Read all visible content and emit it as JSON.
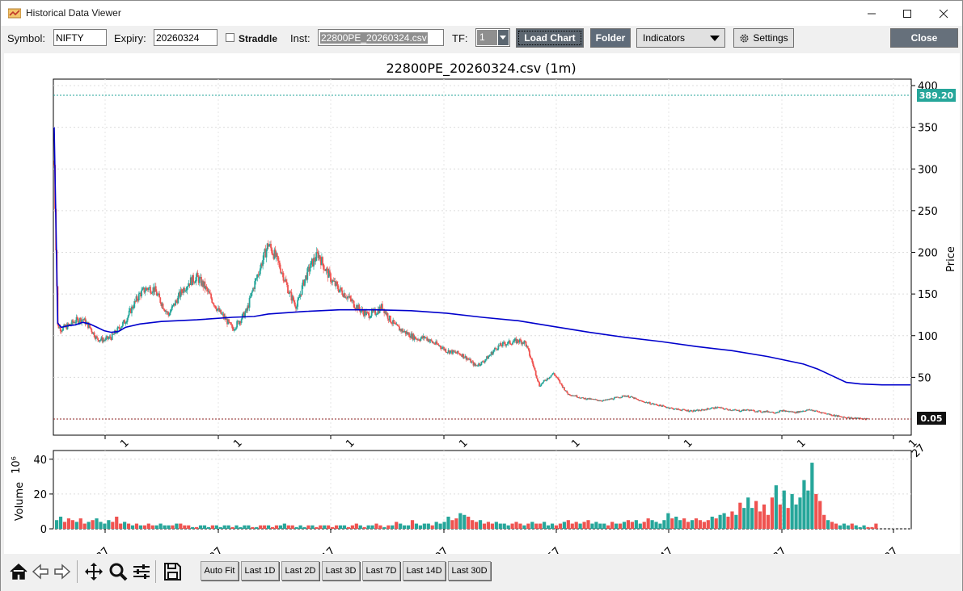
{
  "window": {
    "title": "Historical Data Viewer"
  },
  "toolbar": {
    "symbol_label": "Symbol:",
    "symbol_value": "NIFTY",
    "expiry_label": "Expiry:",
    "expiry_value": "20260324",
    "straddle_label": "Straddle",
    "inst_label": "Inst:",
    "inst_value": "22800PE_20260324.csv",
    "tf_label": "TF:",
    "tf_value": "1",
    "load_chart_label": "Load Chart",
    "folder_label": "Folder",
    "indicators_label": "Indicators",
    "settings_label": "Settings",
    "close_label": "Close"
  },
  "chart_data": {
    "type": "candlestick",
    "title": "22800PE_20260324.csv (1m)",
    "ylabel": "Price",
    "ylim": [
      0,
      400
    ],
    "yticks": [
      "400",
      "350",
      "300",
      "250",
      "200",
      "150",
      "100",
      "50"
    ],
    "xtick_labels": [
      "1",
      "1",
      "1",
      "1",
      "1",
      "1",
      "1",
      "1",
      "27"
    ],
    "grid": true,
    "last_price_marker": "389.20",
    "low_marker": "0.05",
    "price_series_approx": [
      [
        0,
        305
      ],
      [
        1,
        112
      ],
      [
        2,
        108
      ],
      [
        4,
        112
      ],
      [
        6,
        118
      ],
      [
        8,
        120
      ],
      [
        10,
        110
      ],
      [
        12,
        96
      ],
      [
        14,
        95
      ],
      [
        16,
        98
      ],
      [
        18,
        108
      ],
      [
        20,
        118
      ],
      [
        22,
        135
      ],
      [
        24,
        150
      ],
      [
        26,
        157
      ],
      [
        28,
        156
      ],
      [
        30,
        140
      ],
      [
        32,
        125
      ],
      [
        34,
        140
      ],
      [
        36,
        155
      ],
      [
        38,
        165
      ],
      [
        40,
        170
      ],
      [
        42,
        160
      ],
      [
        44,
        145
      ],
      [
        46,
        130
      ],
      [
        48,
        120
      ],
      [
        50,
        108
      ],
      [
        52,
        118
      ],
      [
        54,
        130
      ],
      [
        56,
        160
      ],
      [
        58,
        185
      ],
      [
        60,
        210
      ],
      [
        62,
        195
      ],
      [
        64,
        175
      ],
      [
        66,
        150
      ],
      [
        68,
        135
      ],
      [
        70,
        165
      ],
      [
        72,
        185
      ],
      [
        74,
        198
      ],
      [
        76,
        180
      ],
      [
        78,
        165
      ],
      [
        80,
        155
      ],
      [
        82,
        148
      ],
      [
        84,
        138
      ],
      [
        86,
        130
      ],
      [
        88,
        125
      ],
      [
        90,
        128
      ],
      [
        92,
        135
      ],
      [
        94,
        120
      ],
      [
        96,
        110
      ],
      [
        98,
        105
      ],
      [
        100,
        100
      ],
      [
        102,
        96
      ],
      [
        104,
        98
      ],
      [
        106,
        92
      ],
      [
        108,
        88
      ],
      [
        110,
        82
      ],
      [
        112,
        80
      ],
      [
        114,
        78
      ],
      [
        116,
        72
      ],
      [
        118,
        64
      ],
      [
        120,
        68
      ],
      [
        122,
        76
      ],
      [
        124,
        86
      ],
      [
        126,
        90
      ],
      [
        128,
        92
      ],
      [
        130,
        94
      ],
      [
        132,
        92
      ],
      [
        134,
        68
      ],
      [
        136,
        40
      ],
      [
        138,
        48
      ],
      [
        140,
        55
      ],
      [
        142,
        42
      ],
      [
        144,
        30
      ],
      [
        146,
        28
      ],
      [
        148,
        25
      ],
      [
        150,
        24
      ],
      [
        152,
        23
      ],
      [
        154,
        22
      ],
      [
        156,
        24
      ],
      [
        158,
        26
      ],
      [
        160,
        28
      ],
      [
        162,
        26
      ],
      [
        164,
        22
      ],
      [
        166,
        20
      ],
      [
        168,
        18
      ],
      [
        170,
        16
      ],
      [
        172,
        14
      ],
      [
        174,
        12
      ],
      [
        176,
        11
      ],
      [
        178,
        10
      ],
      [
        180,
        10
      ],
      [
        182,
        11
      ],
      [
        184,
        13
      ],
      [
        186,
        14
      ],
      [
        188,
        12
      ],
      [
        190,
        11
      ],
      [
        192,
        10
      ],
      [
        194,
        11
      ],
      [
        196,
        10
      ],
      [
        198,
        9
      ],
      [
        200,
        9
      ],
      [
        202,
        8
      ],
      [
        204,
        10
      ],
      [
        206,
        9
      ],
      [
        208,
        8
      ],
      [
        210,
        10
      ],
      [
        212,
        11
      ],
      [
        214,
        9
      ],
      [
        216,
        7
      ],
      [
        218,
        5
      ],
      [
        220,
        3
      ],
      [
        222,
        2
      ],
      [
        224,
        1
      ],
      [
        226,
        0.5
      ],
      [
        228,
        0.2
      ]
    ],
    "vwap_series_approx": [
      [
        0,
        350
      ],
      [
        1,
        115
      ],
      [
        2,
        110
      ],
      [
        4,
        112
      ],
      [
        6,
        113
      ],
      [
        8,
        116
      ],
      [
        10,
        114
      ],
      [
        12,
        110
      ],
      [
        14,
        106
      ],
      [
        16,
        104
      ],
      [
        18,
        105
      ],
      [
        20,
        110
      ],
      [
        24,
        114
      ],
      [
        30,
        117
      ],
      [
        40,
        119
      ],
      [
        50,
        122
      ],
      [
        56,
        123
      ],
      [
        60,
        126
      ],
      [
        70,
        129
      ],
      [
        80,
        131
      ],
      [
        90,
        131
      ],
      [
        100,
        130
      ],
      [
        110,
        127
      ],
      [
        120,
        122
      ],
      [
        130,
        118
      ],
      [
        140,
        111
      ],
      [
        150,
        104
      ],
      [
        160,
        98
      ],
      [
        170,
        93
      ],
      [
        180,
        87
      ],
      [
        190,
        82
      ],
      [
        200,
        75
      ],
      [
        210,
        66
      ],
      [
        214,
        60
      ],
      [
        218,
        52
      ],
      [
        222,
        44
      ],
      [
        226,
        42
      ],
      [
        232,
        41
      ],
      [
        240,
        41
      ]
    ],
    "volume": {
      "ylabel": "Volume",
      "scale_label": "10⁶",
      "ylim": [
        0,
        45
      ],
      "yticks": [
        "40",
        "20",
        "0"
      ],
      "xtick_labels": [
        "0:37",
        "0:27",
        "1:17",
        "0:07",
        "0:57",
        "0:47",
        "1:37",
        "5:27"
      ],
      "values_approx_millions": [
        5,
        7,
        4,
        6,
        5,
        4,
        6,
        3,
        4,
        5,
        6,
        4,
        3,
        5,
        4,
        7,
        3,
        4,
        3,
        2,
        3,
        2,
        2,
        3,
        2,
        2,
        3,
        2,
        2,
        2,
        3,
        3,
        2,
        2,
        1,
        1,
        2,
        2,
        1,
        2,
        2,
        1,
        2,
        2,
        1,
        2,
        1,
        2,
        2,
        1,
        1,
        2,
        2,
        2,
        1,
        2,
        2,
        3,
        2,
        2,
        1,
        2,
        1,
        2,
        2,
        1,
        2,
        2,
        2,
        1,
        2,
        2,
        2,
        1,
        2,
        3,
        2,
        1,
        2,
        2,
        3,
        2,
        1,
        2,
        2,
        4,
        3,
        2,
        2,
        5,
        3,
        2,
        3,
        3,
        2,
        4,
        3,
        4,
        7,
        5,
        6,
        9,
        8,
        7,
        5,
        4,
        5,
        3,
        4,
        3,
        4,
        3,
        3,
        2,
        3,
        4,
        3,
        2,
        3,
        4,
        3,
        3,
        4,
        2,
        3,
        2,
        3,
        4,
        5,
        3,
        4,
        3,
        4,
        5,
        3,
        4,
        3,
        3,
        2,
        4,
        3,
        3,
        4,
        5,
        4,
        5,
        3,
        4,
        6,
        5,
        4,
        3,
        5,
        9,
        6,
        7,
        5,
        6,
        4,
        5,
        6,
        5,
        4,
        5,
        7,
        6,
        8,
        9,
        7,
        10,
        8,
        15,
        12,
        18,
        12,
        16,
        10,
        14,
        8,
        18,
        25,
        14,
        22,
        12,
        20,
        14,
        18,
        28,
        22,
        38,
        20,
        16,
        8,
        5,
        4,
        3,
        2,
        3,
        2,
        3,
        2,
        1,
        2,
        1,
        1,
        3
      ]
    }
  },
  "navbar": {
    "range_buttons": [
      "Auto Fit",
      "Last 1D",
      "Last 2D",
      "Last 3D",
      "Last 7D",
      "Last 14D",
      "Last 30D"
    ]
  },
  "colors": {
    "up": "#26a69a",
    "down": "#ef5350",
    "vwap": "#0000cc",
    "accent_button": "#5c6670"
  }
}
